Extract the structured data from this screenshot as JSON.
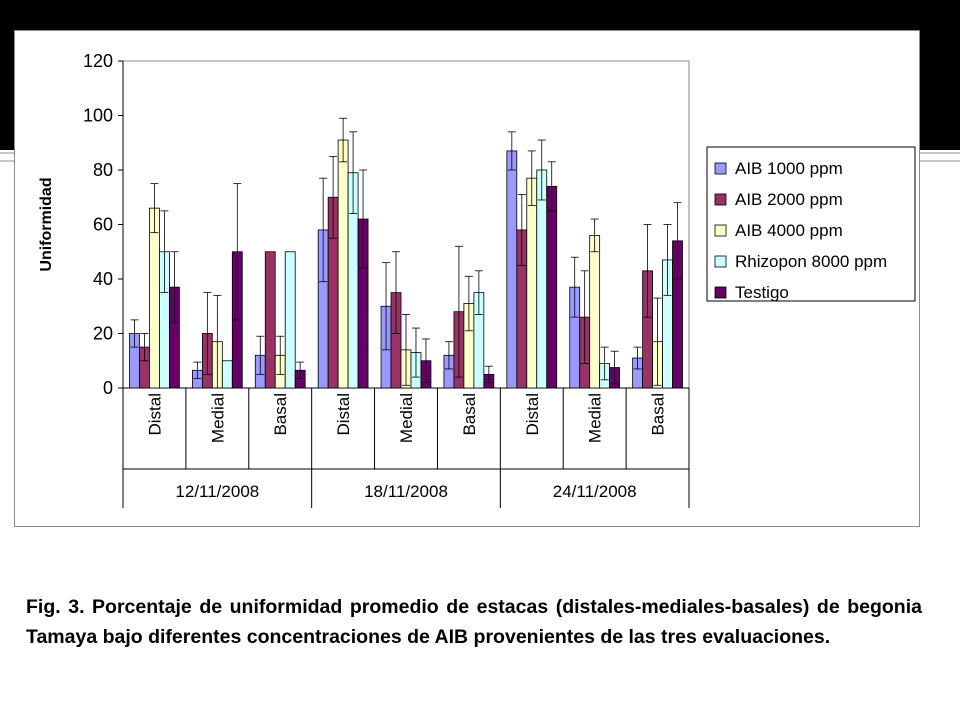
{
  "caption": "Fig. 3.  Porcentaje de uniformidad promedio de estacas (distales-mediales-basales) de begonia Tamaya bajo diferentes concentraciones de AIB provenientes de las tres evaluaciones.",
  "chart_data": {
    "type": "bar",
    "title": "",
    "xlabel": "",
    "ylabel": "Uniformidad",
    "ylim": [
      0,
      120
    ],
    "yticks": [
      0,
      20,
      40,
      60,
      80,
      100,
      120
    ],
    "grid": false,
    "legend_position": "right",
    "groups": [
      "12/11/2008",
      "18/11/2008",
      "24/11/2008"
    ],
    "subcategories": [
      "Distal",
      "Medial",
      "Basal"
    ],
    "categories": [
      "Distal",
      "Medial",
      "Basal",
      "Distal",
      "Medial",
      "Basal",
      "Distal",
      "Medial",
      "Basal"
    ],
    "series": [
      {
        "name": "AIB 1000 ppm",
        "color": "#9999ff",
        "values": [
          20,
          6.5,
          12,
          58,
          30,
          12,
          87,
          37,
          11
        ],
        "errors": [
          5,
          3,
          7,
          19,
          16,
          5,
          7,
          11,
          4
        ]
      },
      {
        "name": "AIB 2000 ppm",
        "color": "#993366",
        "values": [
          15,
          20,
          50,
          70,
          35,
          28,
          58,
          26,
          43
        ],
        "errors": [
          5,
          15,
          0,
          15,
          15,
          24,
          13,
          17,
          17
        ]
      },
      {
        "name": "AIB 4000 ppm",
        "color": "#ffffcc",
        "values": [
          66,
          17,
          12,
          91,
          14,
          31,
          77,
          56,
          17
        ],
        "errors": [
          9,
          17,
          7,
          8,
          13,
          10,
          10,
          6,
          16
        ]
      },
      {
        "name": "Rhizopon 8000 ppm",
        "color": "#ccffff",
        "values": [
          50,
          10,
          50,
          79,
          13,
          35,
          80,
          9,
          47
        ],
        "errors": [
          15,
          0,
          0,
          15,
          9,
          8,
          11,
          6,
          13
        ]
      },
      {
        "name": "Testigo",
        "color": "#660066",
        "values": [
          37,
          50,
          6.5,
          62,
          10,
          5,
          74,
          7.5,
          54
        ],
        "errors": [
          13,
          25,
          3,
          18,
          8,
          3,
          9,
          6,
          14
        ]
      }
    ]
  }
}
